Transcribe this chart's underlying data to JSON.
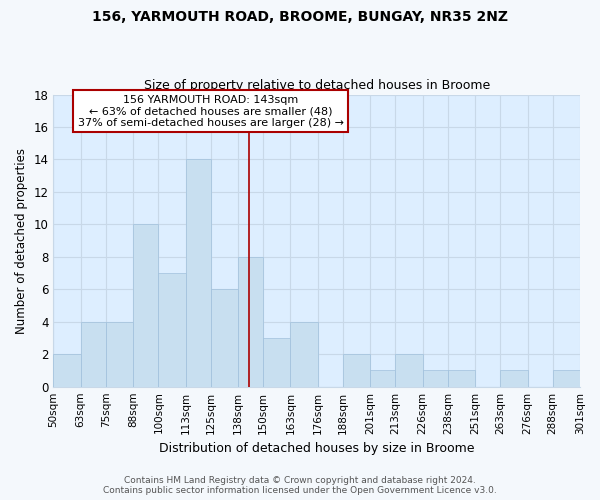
{
  "title": "156, YARMOUTH ROAD, BROOME, BUNGAY, NR35 2NZ",
  "subtitle": "Size of property relative to detached houses in Broome",
  "xlabel": "Distribution of detached houses by size in Broome",
  "ylabel": "Number of detached properties",
  "bin_edges": [
    50,
    63,
    75,
    88,
    100,
    113,
    125,
    138,
    150,
    163,
    176,
    188,
    201,
    213,
    226,
    238,
    251,
    263,
    276,
    288,
    301
  ],
  "bin_labels": [
    "50sqm",
    "63sqm",
    "75sqm",
    "88sqm",
    "100sqm",
    "113sqm",
    "125sqm",
    "138sqm",
    "150sqm",
    "163sqm",
    "176sqm",
    "188sqm",
    "201sqm",
    "213sqm",
    "226sqm",
    "238sqm",
    "251sqm",
    "263sqm",
    "276sqm",
    "288sqm",
    "301sqm"
  ],
  "counts": [
    2,
    4,
    4,
    10,
    7,
    14,
    6,
    8,
    3,
    4,
    0,
    2,
    1,
    2,
    1,
    1,
    0,
    1,
    0,
    1
  ],
  "bar_color": "#c8dff0",
  "bar_edgecolor": "#a0c0dc",
  "property_line_x": 143,
  "property_line_color": "#aa0000",
  "annotation_line1": "156 YARMOUTH ROAD: 143sqm",
  "annotation_line2": "← 63% of detached houses are smaller (48)",
  "annotation_line3": "37% of semi-detached houses are larger (28) →",
  "annotation_box_edgecolor": "#aa0000",
  "ylim": [
    0,
    18
  ],
  "yticks": [
    0,
    2,
    4,
    6,
    8,
    10,
    12,
    14,
    16,
    18
  ],
  "grid_color": "#c8d8e8",
  "plot_bg_color": "#ddeeff",
  "fig_bg_color": "#f4f8fc",
  "footer_line1": "Contains HM Land Registry data © Crown copyright and database right 2024.",
  "footer_line2": "Contains public sector information licensed under the Open Government Licence v3.0."
}
